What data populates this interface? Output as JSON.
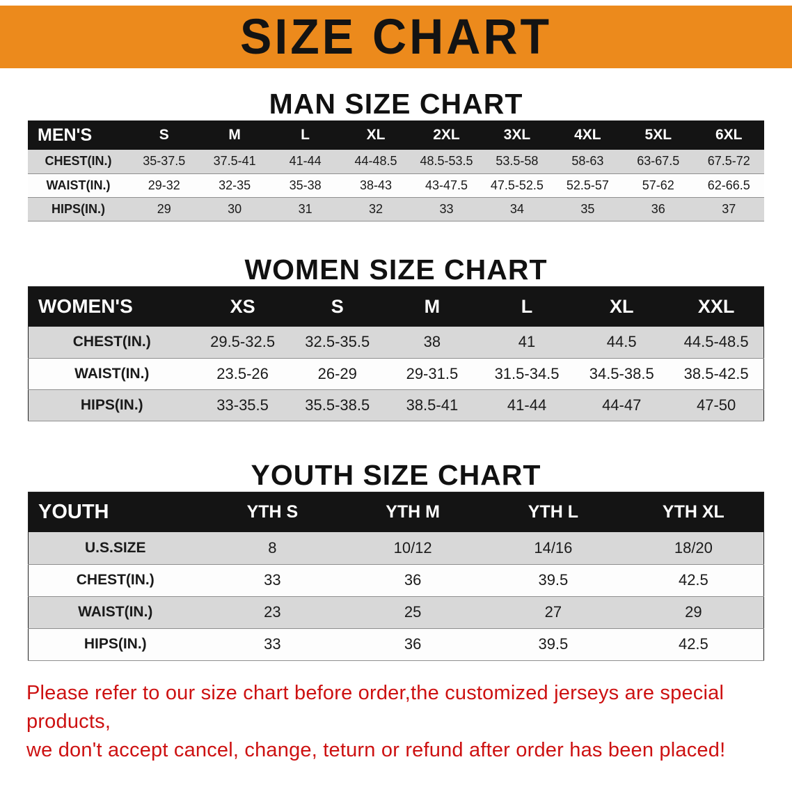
{
  "colors": {
    "banner_bg": "#EC8A1C",
    "header_bg": "#141414",
    "row_gray": "#D8D8D8",
    "footer_red": "#CD1111"
  },
  "banner": {
    "title": "SIZE CHART"
  },
  "men": {
    "heading": "MAN SIZE CHART",
    "table": {
      "header": [
        "MEN'S",
        "S",
        "M",
        "L",
        "XL",
        "2XL",
        "3XL",
        "4XL",
        "5XL",
        "6XL"
      ],
      "rows": [
        [
          "CHEST(IN.)",
          "35-37.5",
          "37.5-41",
          "41-44",
          "44-48.5",
          "48.5-53.5",
          "53.5-58",
          "58-63",
          "63-67.5",
          "67.5-72"
        ],
        [
          "WAIST(IN.)",
          "29-32",
          "32-35",
          "35-38",
          "38-43",
          "43-47.5",
          "47.5-52.5",
          "52.5-57",
          "57-62",
          "62-66.5"
        ],
        [
          "HIPS(IN.)",
          "29",
          "30",
          "31",
          "32",
          "33",
          "34",
          "35",
          "36",
          "37"
        ]
      ]
    }
  },
  "women": {
    "heading": "WOMEN SIZE CHART",
    "table": {
      "header": [
        "WOMEN'S",
        "XS",
        "S",
        "M",
        "L",
        "XL",
        "XXL"
      ],
      "rows": [
        [
          "CHEST(IN.)",
          "29.5-32.5",
          "32.5-35.5",
          "38",
          "41",
          "44.5",
          "44.5-48.5"
        ],
        [
          "WAIST(IN.)",
          "23.5-26",
          "26-29",
          "29-31.5",
          "31.5-34.5",
          "34.5-38.5",
          "38.5-42.5"
        ],
        [
          "HIPS(IN.)",
          "33-35.5",
          "35.5-38.5",
          "38.5-41",
          "41-44",
          "44-47",
          "47-50"
        ]
      ]
    }
  },
  "youth": {
    "heading": "YOUTH SIZE CHART",
    "table": {
      "header": [
        "YOUTH",
        "YTH S",
        "YTH M",
        "YTH L",
        "YTH XL"
      ],
      "rows": [
        [
          "U.S.SIZE",
          "8",
          "10/12",
          "14/16",
          "18/20"
        ],
        [
          "CHEST(IN.)",
          "33",
          "36",
          "39.5",
          "42.5"
        ],
        [
          "WAIST(IN.)",
          "23",
          "25",
          "27",
          "29"
        ],
        [
          "HIPS(IN.)",
          "33",
          "36",
          "39.5",
          "42.5"
        ]
      ]
    }
  },
  "footer": {
    "line1": "Please refer to our size chart before order,the customized jerseys are special products,",
    "line2": "we don't accept cancel, change, teturn or refund after order has been placed!"
  }
}
